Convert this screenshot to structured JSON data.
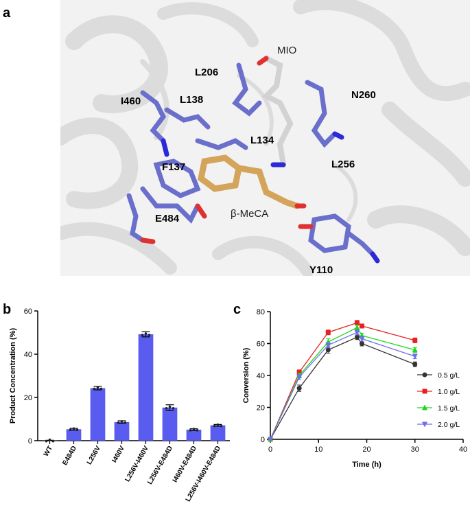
{
  "panel_labels": {
    "a": "a",
    "b": "b",
    "c": "c"
  },
  "structure": {
    "residue_labels": [
      "MIO",
      "L206",
      "N260",
      "I460",
      "L138",
      "L134",
      "L256",
      "F137",
      "E484",
      "β-MeCA",
      "Y110"
    ],
    "colors": {
      "protein": "#dcdcdc",
      "residue": "#6b6fcc",
      "ligand": "#d4a45a",
      "mio": "#d2d2d2",
      "oxygen": "#e03030",
      "nitrogen": "#2a2ad8"
    }
  },
  "chart_data": [
    {
      "type": "bar",
      "panel": "b",
      "categories": [
        "WT",
        "E484D",
        "L256V",
        "I460V",
        "L256V-I460V",
        "L256V-E484D",
        "I460V-E484D",
        "L256V-I460V-E484D"
      ],
      "values": [
        0.1,
        5.3,
        24.3,
        8.6,
        49.2,
        15.3,
        5.1,
        7.1
      ],
      "errors": [
        0.1,
        0.4,
        0.8,
        0.6,
        1.2,
        1.3,
        0.4,
        0.4
      ],
      "xlabel": "",
      "ylabel": "Product Concentration (%)",
      "ylim": [
        0,
        60
      ],
      "yticks": [
        0,
        20,
        40,
        60
      ],
      "color": "#5a5cf0"
    },
    {
      "type": "line",
      "panel": "c",
      "x": [
        0,
        6,
        12,
        18,
        19,
        30
      ],
      "xlabel": "Time (h)",
      "ylabel": "Conversion (%)",
      "xlim": [
        0,
        40
      ],
      "ylim": [
        0,
        80
      ],
      "xticks": [
        0,
        10,
        20,
        30,
        40
      ],
      "yticks": [
        0,
        20,
        40,
        60,
        80
      ],
      "legend_position": "right",
      "series": [
        {
          "name": "0.5 g/L",
          "color": "#333333",
          "marker": "circle",
          "values": [
            0,
            32,
            56,
            64,
            60,
            47
          ],
          "errors": [
            0,
            2,
            2,
            1.5,
            1.5,
            1.5
          ]
        },
        {
          "name": "1.0 g/L",
          "color": "#e8201f",
          "marker": "square",
          "values": [
            0,
            42,
            67,
            73,
            71,
            62
          ],
          "errors": [
            0,
            1.5,
            1.5,
            1.5,
            1.2,
            1.5
          ]
        },
        {
          "name": "1.5 g/L",
          "color": "#19d919",
          "marker": "triangle-up",
          "values": [
            0,
            40,
            61,
            70,
            65,
            56
          ],
          "errors": [
            0,
            1.5,
            2,
            1.5,
            1.5,
            1.5
          ]
        },
        {
          "name": "2.0 g/L",
          "color": "#6f6fe6",
          "marker": "triangle-down",
          "values": [
            0,
            39,
            59,
            67,
            63,
            52
          ],
          "errors": [
            0,
            1.5,
            1.5,
            1.5,
            1.5,
            1.5
          ]
        }
      ]
    }
  ]
}
